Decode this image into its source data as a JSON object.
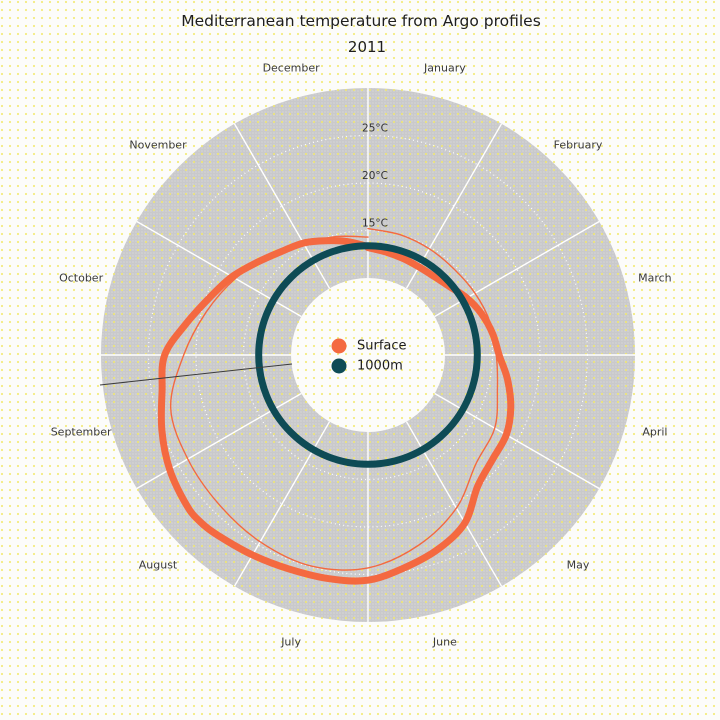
{
  "title": "Mediterranean temperature from Argo profiles",
  "subtitle": "2011",
  "legend": {
    "items": [
      {
        "label": "Surface",
        "color": "#F46940"
      },
      {
        "label": "1000m",
        "color": "#0E4B55"
      }
    ]
  },
  "months": [
    "January",
    "February",
    "March",
    "April",
    "May",
    "June",
    "July",
    "August",
    "September",
    "October",
    "November",
    "December"
  ],
  "radial_ticks": [
    {
      "value": 15,
      "label": "15°C"
    },
    {
      "value": 20,
      "label": "20°C"
    },
    {
      "value": 25,
      "label": "25°C"
    }
  ],
  "colors": {
    "surface": "#F46940",
    "deep": "#0E4B55",
    "ring": "#C9C9CB",
    "background": "#FCFCFA",
    "grid": "#FFFFFF",
    "dots": "#F2E96B",
    "artifact_line": "#3C3C3C"
  },
  "chart_data": {
    "type": "line",
    "polar": true,
    "title": "Mediterranean temperature from Argo profiles",
    "subtitle": "2011",
    "angular_axis": {
      "categories": [
        "January",
        "February",
        "March",
        "April",
        "May",
        "June",
        "July",
        "August",
        "September",
        "October",
        "November",
        "December"
      ],
      "direction": "clockwise",
      "start": "top",
      "units": "months since Jan 1"
    },
    "radial_axis": {
      "ticks": [
        15,
        20,
        25
      ],
      "tick_labels": [
        "15°C",
        "20°C",
        "25°C"
      ],
      "range": [
        10,
        30
      ],
      "units": "°C",
      "grid": "dashed-white-on-gray"
    },
    "legend_position": "center-hole",
    "series": [
      {
        "name": "Surface",
        "color": "#F46940",
        "style": "thick",
        "t_months": [
          0,
          0.33,
          0.67,
          1,
          1.33,
          1.67,
          2,
          2.33,
          2.67,
          3,
          3.33,
          3.67,
          4,
          4.33,
          4.67,
          5,
          5.33,
          5.67,
          6,
          6.33,
          6.67,
          7,
          7.33,
          7.5,
          7.67,
          8,
          8.33,
          8.67,
          9,
          9.33,
          9.67,
          10,
          10.33,
          10.67,
          11,
          11.33,
          11.67,
          12
        ],
        "values": [
          13.2,
          12.9,
          12.7,
          12.6,
          12.7,
          13.1,
          13.9,
          14.6,
          15.2,
          15.7,
          16.8,
          17.9,
          18.7,
          19.0,
          19.9,
          22.3,
          23.6,
          24.6,
          25.6,
          25.8,
          25.9,
          26.2,
          26.6,
          26.8,
          26.7,
          26.0,
          25.0,
          23.9,
          23.3,
          21.3,
          19.6,
          18.4,
          17.1,
          16.1,
          15.5,
          14.7,
          14.0,
          13.3
        ]
      },
      {
        "name": "Surface (thin trace)",
        "color": "#F46940",
        "style": "thin",
        "t_months": [
          0,
          0.5,
          1,
          1.5,
          2,
          2.5,
          3,
          3.5,
          4,
          4.5,
          5,
          5.5,
          6,
          6.5,
          7,
          7.5,
          8,
          8.5,
          9,
          9.5,
          10,
          10.5,
          11,
          11.5,
          12
        ],
        "values": [
          15.2,
          15.0,
          14.8,
          14.7,
          14.9,
          15.2,
          15.4,
          16.0,
          17.3,
          18.0,
          20.5,
          22.6,
          24.3,
          24.9,
          24.6,
          24.1,
          23.8,
          23.4,
          21.3,
          19.5,
          18.0,
          16.6,
          15.4,
          14.8,
          14.3
        ]
      },
      {
        "name": "1000m",
        "color": "#0E4B55",
        "style": "thick",
        "constant_value": 13.4
      }
    ]
  }
}
